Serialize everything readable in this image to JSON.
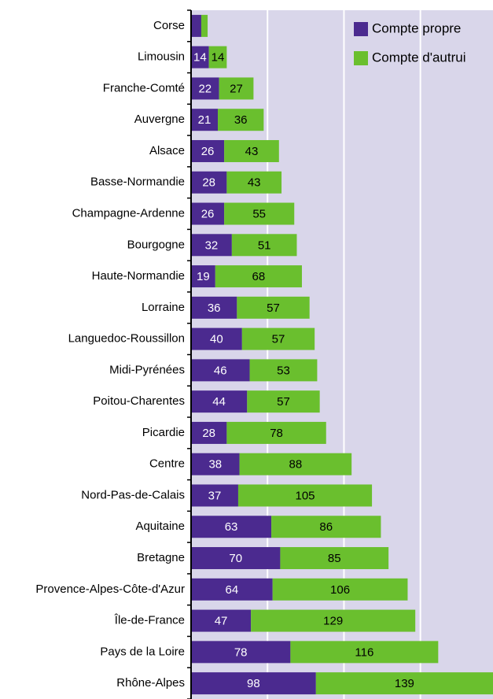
{
  "chart_data": {
    "type": "stacked-bar-horizontal",
    "categories": [
      "Corse",
      "Limousin",
      "Franche-Comté",
      "Auvergne",
      "Alsace",
      "Basse-Normandie",
      "Champagne-Ardenne",
      "Bourgogne",
      "Haute-Normandie",
      "Lorraine",
      "Languedoc-Roussillon",
      "Midi-Pyrénées",
      "Poitou-Charentes",
      "Picardie",
      "Centre",
      "Nord-Pas-de-Calais",
      "Aquitaine",
      "Bretagne",
      "Provence-Alpes-Côte-d'Azur",
      "Île-de-France",
      "Pays de la Loire",
      "Rhône-Alpes"
    ],
    "series": [
      {
        "name": "Compte propre",
        "color": "#4b2a8f",
        "values": [
          8,
          14,
          22,
          21,
          26,
          28,
          26,
          32,
          19,
          36,
          40,
          46,
          44,
          28,
          38,
          37,
          63,
          70,
          64,
          47,
          78,
          98
        ]
      },
      {
        "name": "Compte d'autrui",
        "color": "#6abf2e",
        "values": [
          5,
          14,
          27,
          36,
          43,
          43,
          55,
          51,
          68,
          57,
          57,
          53,
          57,
          78,
          88,
          105,
          86,
          85,
          106,
          129,
          116,
          139
        ]
      }
    ],
    "xlim": [
      0,
      237
    ],
    "xticks": [
      60,
      120,
      180
    ],
    "grid": true,
    "legend": "top-right"
  }
}
